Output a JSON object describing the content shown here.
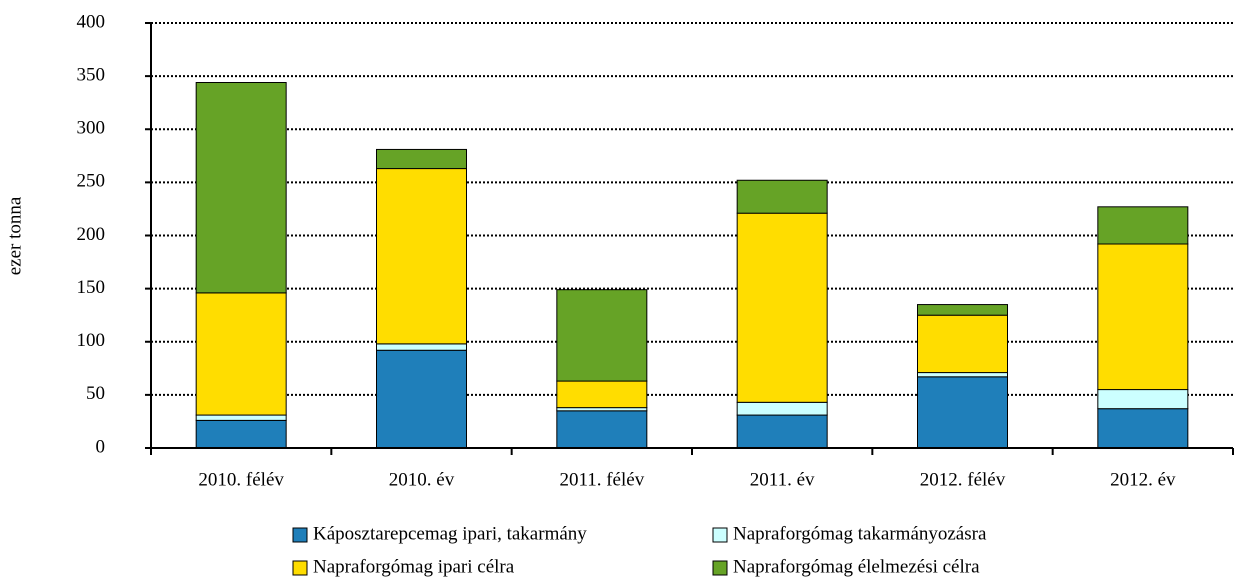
{
  "chart_data": {
    "type": "stacked_bar",
    "y_axis_label": "ezer tonna",
    "categories": [
      "2010. félév",
      "2010. év",
      "2011. félév",
      "2011. év",
      "2012. félév",
      "2012. év"
    ],
    "series": [
      {
        "name": "Káposztarepcemag ipari, takarmány",
        "color": "#1f7fba",
        "values": [
          26,
          92,
          35,
          31,
          67,
          37
        ]
      },
      {
        "name": "Napraforgómag takarmányozásra",
        "color": "#ccffff",
        "values": [
          5,
          6,
          3,
          12,
          4,
          18
        ]
      },
      {
        "name": "Napraforgómag ipari célra",
        "color": "#ffdd00",
        "values": [
          115,
          165,
          25,
          178,
          54,
          137
        ]
      },
      {
        "name": "Napraforgómag élelmezési célra",
        "color": "#66a326",
        "values": [
          198,
          18,
          86,
          31,
          10,
          35
        ]
      }
    ],
    "ylim": [
      0,
      400
    ],
    "yticks": [
      0,
      50,
      100,
      150,
      200,
      250,
      300,
      350,
      400
    ],
    "grid": true,
    "legend": "bottom"
  }
}
